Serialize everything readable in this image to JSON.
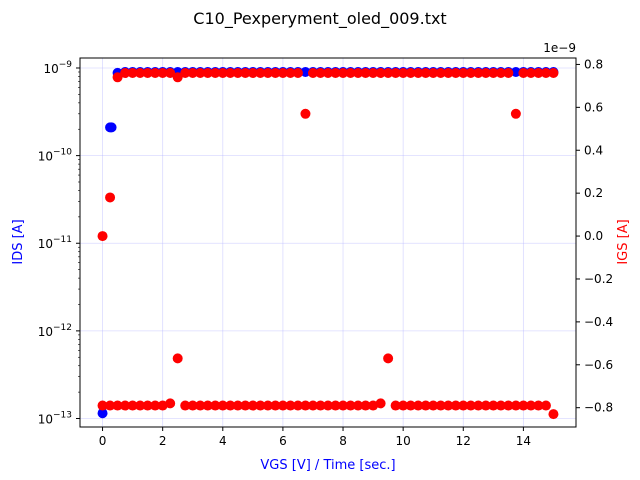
{
  "chart_data": {
    "type": "scatter",
    "title": "C10_Pexperyment_oled_009.txt",
    "xlabel": "VGS [V] / Time [sec.]",
    "ylabel_left": "IDS [A]",
    "ylabel_right": "IGS [A]",
    "x_ticks": [
      "0",
      "2",
      "4",
      "6",
      "8",
      "10",
      "12",
      "14"
    ],
    "xlim": [
      -0.75,
      15.75
    ],
    "y_left_scale": "log",
    "y_left_ylim": [
      8e-14,
      1.3e-09
    ],
    "y_left_ticks": [
      {
        "value": 1e-13,
        "base": "10",
        "exp": "−13"
      },
      {
        "value": 1e-12,
        "base": "10",
        "exp": "−12"
      },
      {
        "value": 1e-11,
        "base": "10",
        "exp": "−11"
      },
      {
        "value": 1e-10,
        "base": "10",
        "exp": "−10"
      },
      {
        "value": 1e-09,
        "base": "10",
        "exp": "−9"
      }
    ],
    "y_right_scale": "linear",
    "y_right_offset_label": "1e−9",
    "y_right_ylim": [
      -0.89,
      0.83
    ],
    "y_right_ticks": [
      "0.8",
      "0.6",
      "0.4",
      "0.2",
      "0.0",
      "−0.2",
      "−0.4",
      "−0.6",
      "−0.8"
    ],
    "grid": true,
    "series": [
      {
        "name": "IDS",
        "axis": "left",
        "color": "#0000ff",
        "points": [
          [
            0.0,
            1.15e-13
          ],
          [
            0.25,
            2.1e-10
          ],
          [
            0.3,
            2.1e-10
          ],
          [
            0.5,
            8.8e-10
          ],
          [
            0.75,
            9e-10
          ],
          [
            1.0,
            9e-10
          ],
          [
            1.25,
            9e-10
          ],
          [
            1.5,
            9e-10
          ],
          [
            1.75,
            9e-10
          ],
          [
            2.0,
            9e-10
          ],
          [
            2.25,
            9e-10
          ],
          [
            2.5,
            9e-10
          ],
          [
            2.75,
            9e-10
          ],
          [
            3.0,
            9e-10
          ],
          [
            3.25,
            9e-10
          ],
          [
            3.5,
            9e-10
          ],
          [
            3.75,
            9e-10
          ],
          [
            4.0,
            9e-10
          ],
          [
            4.25,
            9e-10
          ],
          [
            4.5,
            9e-10
          ],
          [
            4.75,
            9e-10
          ],
          [
            5.0,
            9e-10
          ],
          [
            5.25,
            9e-10
          ],
          [
            5.5,
            9e-10
          ],
          [
            5.75,
            9e-10
          ],
          [
            6.0,
            9e-10
          ],
          [
            6.25,
            9e-10
          ],
          [
            6.5,
            9e-10
          ],
          [
            6.75,
            9e-10
          ],
          [
            7.0,
            9e-10
          ],
          [
            7.25,
            9e-10
          ],
          [
            7.5,
            9e-10
          ],
          [
            7.75,
            9e-10
          ],
          [
            8.0,
            9e-10
          ],
          [
            8.25,
            9e-10
          ],
          [
            8.5,
            9e-10
          ],
          [
            8.75,
            9e-10
          ],
          [
            9.0,
            9e-10
          ],
          [
            9.25,
            9e-10
          ],
          [
            9.5,
            9e-10
          ],
          [
            9.75,
            9e-10
          ],
          [
            10.0,
            9e-10
          ],
          [
            10.25,
            9e-10
          ],
          [
            10.5,
            9e-10
          ],
          [
            10.75,
            9e-10
          ],
          [
            11.0,
            9e-10
          ],
          [
            11.25,
            9e-10
          ],
          [
            11.5,
            9e-10
          ],
          [
            11.75,
            9e-10
          ],
          [
            12.0,
            9e-10
          ],
          [
            12.25,
            9e-10
          ],
          [
            12.5,
            9e-10
          ],
          [
            12.75,
            9e-10
          ],
          [
            13.0,
            9e-10
          ],
          [
            13.25,
            9e-10
          ],
          [
            13.5,
            9e-10
          ],
          [
            13.75,
            9e-10
          ],
          [
            14.0,
            9e-10
          ],
          [
            14.25,
            9e-10
          ],
          [
            14.5,
            9e-10
          ],
          [
            14.75,
            9e-10
          ],
          [
            15.0,
            9e-10
          ]
        ]
      },
      {
        "name": "IGS",
        "axis": "right",
        "color": "#ff0000",
        "points": [
          [
            0.0,
            0.0
          ],
          [
            0.0,
            -0.79
          ],
          [
            0.25,
            0.18
          ],
          [
            0.25,
            -0.79
          ],
          [
            0.5,
            0.74
          ],
          [
            0.5,
            -0.79
          ],
          [
            0.75,
            0.76
          ],
          [
            0.75,
            -0.79
          ],
          [
            1.0,
            0.76
          ],
          [
            1.0,
            -0.79
          ],
          [
            1.25,
            0.76
          ],
          [
            1.25,
            -0.79
          ],
          [
            1.5,
            0.76
          ],
          [
            1.5,
            -0.79
          ],
          [
            1.75,
            0.76
          ],
          [
            1.75,
            -0.79
          ],
          [
            2.0,
            0.76
          ],
          [
            2.0,
            -0.79
          ],
          [
            2.25,
            0.76
          ],
          [
            2.25,
            -0.78
          ],
          [
            2.5,
            -0.57
          ],
          [
            2.5,
            0.74
          ],
          [
            2.75,
            0.76
          ],
          [
            2.75,
            -0.79
          ],
          [
            3.0,
            0.76
          ],
          [
            3.0,
            -0.79
          ],
          [
            3.25,
            0.76
          ],
          [
            3.25,
            -0.79
          ],
          [
            3.5,
            0.76
          ],
          [
            3.5,
            -0.79
          ],
          [
            3.75,
            0.76
          ],
          [
            3.75,
            -0.79
          ],
          [
            4.0,
            0.76
          ],
          [
            4.0,
            -0.79
          ],
          [
            4.25,
            0.76
          ],
          [
            4.25,
            -0.79
          ],
          [
            4.5,
            0.76
          ],
          [
            4.5,
            -0.79
          ],
          [
            4.75,
            0.76
          ],
          [
            4.75,
            -0.79
          ],
          [
            5.0,
            0.76
          ],
          [
            5.0,
            -0.79
          ],
          [
            5.25,
            0.76
          ],
          [
            5.25,
            -0.79
          ],
          [
            5.5,
            0.76
          ],
          [
            5.5,
            -0.79
          ],
          [
            5.75,
            0.76
          ],
          [
            5.75,
            -0.79
          ],
          [
            6.0,
            0.76
          ],
          [
            6.0,
            -0.79
          ],
          [
            6.25,
            0.76
          ],
          [
            6.25,
            -0.79
          ],
          [
            6.5,
            0.76
          ],
          [
            6.5,
            -0.79
          ],
          [
            6.75,
            0.57
          ],
          [
            6.75,
            -0.79
          ],
          [
            7.0,
            0.76
          ],
          [
            7.0,
            -0.79
          ],
          [
            7.25,
            0.76
          ],
          [
            7.25,
            -0.79
          ],
          [
            7.5,
            0.76
          ],
          [
            7.5,
            -0.79
          ],
          [
            7.75,
            0.76
          ],
          [
            7.75,
            -0.79
          ],
          [
            8.0,
            0.76
          ],
          [
            8.0,
            -0.79
          ],
          [
            8.25,
            0.76
          ],
          [
            8.25,
            -0.79
          ],
          [
            8.5,
            0.76
          ],
          [
            8.5,
            -0.79
          ],
          [
            8.75,
            0.76
          ],
          [
            8.75,
            -0.79
          ],
          [
            9.0,
            0.76
          ],
          [
            9.0,
            -0.79
          ],
          [
            9.25,
            0.76
          ],
          [
            9.25,
            -0.78
          ],
          [
            9.5,
            -0.57
          ],
          [
            9.5,
            0.76
          ],
          [
            9.75,
            0.76
          ],
          [
            9.75,
            -0.79
          ],
          [
            10.0,
            0.76
          ],
          [
            10.0,
            -0.79
          ],
          [
            10.25,
            0.76
          ],
          [
            10.25,
            -0.79
          ],
          [
            10.5,
            0.76
          ],
          [
            10.5,
            -0.79
          ],
          [
            10.75,
            0.76
          ],
          [
            10.75,
            -0.79
          ],
          [
            11.0,
            0.76
          ],
          [
            11.0,
            -0.79
          ],
          [
            11.25,
            0.76
          ],
          [
            11.25,
            -0.79
          ],
          [
            11.5,
            0.76
          ],
          [
            11.5,
            -0.79
          ],
          [
            11.75,
            0.76
          ],
          [
            11.75,
            -0.79
          ],
          [
            12.0,
            0.76
          ],
          [
            12.0,
            -0.79
          ],
          [
            12.25,
            0.76
          ],
          [
            12.25,
            -0.79
          ],
          [
            12.5,
            0.76
          ],
          [
            12.5,
            -0.79
          ],
          [
            12.75,
            0.76
          ],
          [
            12.75,
            -0.79
          ],
          [
            13.0,
            0.76
          ],
          [
            13.0,
            -0.79
          ],
          [
            13.25,
            0.76
          ],
          [
            13.25,
            -0.79
          ],
          [
            13.5,
            0.76
          ],
          [
            13.5,
            -0.79
          ],
          [
            13.75,
            0.57
          ],
          [
            13.75,
            -0.79
          ],
          [
            14.0,
            0.76
          ],
          [
            14.0,
            -0.79
          ],
          [
            14.25,
            0.76
          ],
          [
            14.25,
            -0.79
          ],
          [
            14.5,
            0.76
          ],
          [
            14.5,
            -0.79
          ],
          [
            14.75,
            0.76
          ],
          [
            14.75,
            -0.79
          ],
          [
            15.0,
            0.76
          ],
          [
            15.0,
            -0.83
          ]
        ]
      }
    ]
  }
}
